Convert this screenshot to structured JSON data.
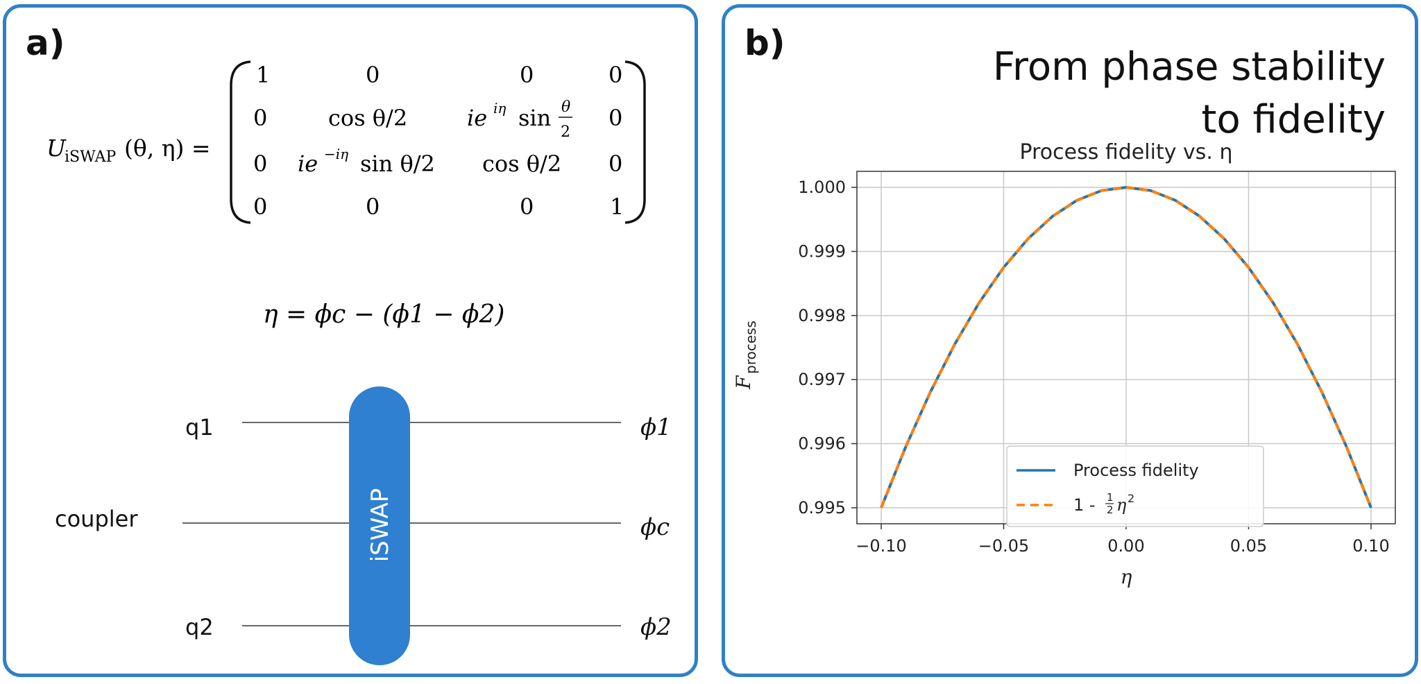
{
  "panel_a": {
    "label": "a)",
    "equation_lhs_U": "U",
    "equation_lhs_sub": "iSWAP",
    "equation_lhs_args": "(θ, η) =",
    "matrix": [
      [
        "1",
        "0",
        "0",
        "0"
      ],
      [
        "0",
        "cos θ/2",
        "ie^{iη} sin θ/2",
        "0"
      ],
      [
        "0",
        "ie^{−iη} sin θ/2",
        "cos θ/2",
        "0"
      ],
      [
        "0",
        "0",
        "0",
        "1"
      ]
    ],
    "m11_cos": "cos θ/2",
    "m12_ie": "ie",
    "m12_sup": "iη",
    "m12_sin": "sin",
    "m12_frac_num": "θ",
    "m12_frac_den": "2",
    "m21_ie": "ie",
    "m21_sup": "−iη",
    "m21_sin": "sin θ/2",
    "m22_cos": "cos θ/2",
    "eta_equation": "η = ϕc − (ϕ1 − ϕ2)",
    "circuit": {
      "gate_label": "iSWAP",
      "gate_color": "#2f80d0",
      "wires": [
        {
          "left": "q1",
          "right": "ϕ1"
        },
        {
          "left": "coupler",
          "right": "ϕc"
        },
        {
          "left": "q2",
          "right": "ϕ2"
        }
      ]
    }
  },
  "panel_b": {
    "label": "b)",
    "headline_line1": "From phase stability",
    "headline_line2": "to fidelity",
    "chart_data": {
      "type": "line",
      "title": "Process fidelity vs. η",
      "xlabel": "η",
      "ylabel": "F",
      "ylabel_sub": "process",
      "xlim": [
        -0.1,
        0.1
      ],
      "ylim": [
        0.99475,
        1.00025
      ],
      "xticks": [
        "−0.10",
        "−0.05",
        "0.00",
        "0.05",
        "0.10"
      ],
      "yticks": [
        "0.995",
        "0.996",
        "0.997",
        "0.998",
        "0.999",
        "1.000"
      ],
      "grid": true,
      "legend_position": "lower center",
      "x": [
        -0.1,
        -0.09,
        -0.08,
        -0.07,
        -0.06,
        -0.05,
        -0.04,
        -0.03,
        -0.02,
        -0.01,
        0.0,
        0.01,
        0.02,
        0.03,
        0.04,
        0.05,
        0.06,
        0.07,
        0.08,
        0.09,
        0.1
      ],
      "series": [
        {
          "name": "Process fidelity",
          "color": "#1f77b4",
          "style": "solid",
          "values": [
            0.995,
            0.99595,
            0.9968,
            0.99755,
            0.9982,
            0.99875,
            0.9992,
            0.99955,
            0.9998,
            0.99995,
            1.0,
            0.99995,
            0.9998,
            0.99955,
            0.9992,
            0.99875,
            0.9982,
            0.99755,
            0.9968,
            0.99595,
            0.995
          ]
        },
        {
          "name": "1 - ½η²",
          "legend_prefix": "1 - ",
          "legend_num": "1",
          "legend_den": "2",
          "legend_var": "η",
          "legend_exp": "2",
          "color": "#ff7f0e",
          "style": "dashed",
          "values": [
            0.995,
            0.99595,
            0.9968,
            0.99755,
            0.9982,
            0.99875,
            0.9992,
            0.99955,
            0.9998,
            0.99995,
            1.0,
            0.99995,
            0.9998,
            0.99955,
            0.9992,
            0.99875,
            0.9982,
            0.99755,
            0.9968,
            0.99595,
            0.995
          ]
        }
      ]
    }
  },
  "colors": {
    "frame": "#2f80c8",
    "gate": "#2f80d0"
  }
}
